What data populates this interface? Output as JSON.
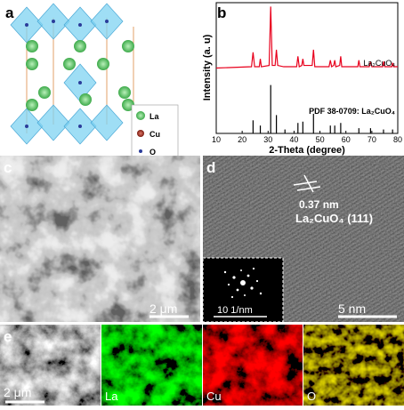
{
  "panel_labels": [
    "a",
    "b",
    "c",
    "d",
    "e"
  ],
  "structure_legend": [
    "La",
    "Cu",
    "O"
  ],
  "chart_data": {
    "type": "line",
    "xlabel": "2-Theta (degree)",
    "ylabel": "Intensity (a. u)",
    "xlim": [
      10,
      80
    ],
    "xticks": [
      10,
      20,
      30,
      40,
      50,
      60,
      70,
      80
    ],
    "ylim": [
      0,
      100
    ],
    "series": [
      {
        "name": "La₂CuO₄",
        "color": "#e8001c",
        "type": "line",
        "x": [
          10,
          23.6,
          24.2,
          24.8,
          26.6,
          27.0,
          27.4,
          30.4,
          31.0,
          31.6,
          32.7,
          33.2,
          33.7,
          36.0,
          41.0,
          41.5,
          42.0,
          43.0,
          43.4,
          43.8,
          47.0,
          47.5,
          48.0,
          53.5,
          54.0,
          54.5,
          55.3,
          55.7,
          56.1,
          57.6,
          58.0,
          58.4,
          64.6,
          65.0,
          65.4,
          69.0,
          69.5,
          70.0,
          74.2,
          74.6,
          75.0,
          77.7,
          78.0,
          78.4,
          80
        ],
        "values": [
          50,
          51,
          62,
          51,
          51,
          57,
          51,
          52,
          97,
          52,
          52,
          64,
          52,
          51,
          51,
          59,
          51,
          52,
          57,
          52,
          52,
          64,
          51,
          51,
          56,
          51,
          52,
          56,
          51,
          52,
          59,
          51,
          51,
          56,
          51,
          51,
          55,
          51,
          51,
          55,
          51,
          51,
          54,
          51,
          51
        ]
      },
      {
        "name": "PDF 38-0709: La₂CuO₄",
        "color": "#000000",
        "type": "stick",
        "x": [
          24.2,
          27.0,
          31.0,
          33.2,
          36.5,
          41.5,
          43.4,
          47.5,
          54.0,
          55.7,
          58.0,
          65.0,
          69.5,
          74.5,
          78.0
        ],
        "values": [
          10,
          6,
          37,
          14,
          3,
          8,
          9,
          15,
          6,
          6,
          8,
          4,
          4,
          3,
          3
        ]
      }
    ]
  },
  "sem": {
    "scale_bar": "2 μm"
  },
  "tem": {
    "spacing": "0.37 nm",
    "plane": "La₂CuO₄ (111)",
    "scale_bar": "5 nm",
    "saed_scale": "10 1/nm"
  },
  "eds": {
    "scale_bar": "2 μm",
    "maps": [
      "La",
      "Cu",
      "O"
    ]
  }
}
